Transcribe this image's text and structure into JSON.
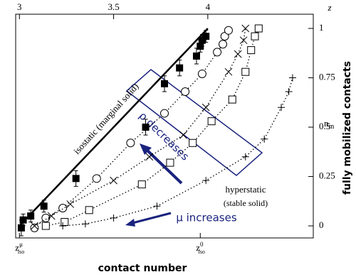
{
  "chart_data": {
    "type": "scatter",
    "xlabel_top": "z",
    "xlabel": "contact number",
    "ylabel": "fully mobilized contacts",
    "ylabel_inner": {
      "text": "n",
      "sub": "m"
    },
    "xlim": [
      2.98,
      4.56
    ],
    "xticks": [
      3,
      3.5,
      4
    ],
    "xticks_bottom": [
      {
        "value": 3,
        "label": "z",
        "sup": "μ",
        "sub": "iso"
      },
      {
        "value": 3.96,
        "label": "z",
        "sup": "0",
        "sub": "iso"
      }
    ],
    "ylim": [
      -0.061,
      1.072
    ],
    "yticks": [
      0,
      0.25,
      0.5,
      0.75,
      1
    ],
    "annotations": [
      "isostatic (marginal solid)",
      "hyperstatic",
      "(stable solid)",
      "ρ decreases",
      "μ increases"
    ],
    "series": [
      {
        "marker": "line",
        "color": "#000000",
        "x": [
          3,
          4
        ],
        "values": [
          0,
          1
        ]
      },
      {
        "marker": "filled-square",
        "color": "#000000",
        "x": [
          3.01,
          3.02,
          3.06,
          3.13,
          3.3,
          3.67,
          3.77,
          3.85,
          3.94,
          3.96,
          3.97,
          3.99
        ],
        "values": [
          -0.01,
          0.03,
          0.05,
          0.1,
          0.24,
          0.5,
          0.72,
          0.8,
          0.86,
          0.91,
          0.94,
          0.96
        ],
        "errors": [
          0.04,
          0.03,
          0.03,
          0.03,
          0.04,
          0.04,
          0.04,
          0.04,
          0.04,
          0.03,
          0.03,
          0.03
        ]
      },
      {
        "marker": "circle",
        "color": "#000000",
        "line": "dotted",
        "x": [
          3.08,
          3.14,
          3.23,
          3.41,
          3.59,
          3.77,
          3.88,
          3.97,
          4.05,
          4.08,
          4.09,
          4.11
        ],
        "values": [
          -0.01,
          0.04,
          0.09,
          0.24,
          0.42,
          0.57,
          0.68,
          0.77,
          0.88,
          0.92,
          0.96,
          0.99
        ]
      },
      {
        "marker": "x",
        "color": "#000000",
        "line": "dotted",
        "x": [
          3.08,
          3.17,
          3.27,
          3.5,
          3.69,
          3.87,
          3.99,
          4.11,
          4.16,
          4.19,
          4.2
        ],
        "values": [
          0,
          0.05,
          0.11,
          0.23,
          0.35,
          0.46,
          0.6,
          0.78,
          0.87,
          0.94,
          1.0
        ]
      },
      {
        "marker": "square",
        "color": "#000000",
        "line": "dotted",
        "x": [
          3.14,
          3.24,
          3.37,
          3.65,
          3.8,
          3.92,
          4.02,
          4.13,
          4.2,
          4.23,
          4.25,
          4.27
        ],
        "values": [
          0,
          0.02,
          0.08,
          0.21,
          0.32,
          0.42,
          0.53,
          0.64,
          0.78,
          0.89,
          0.96,
          1.0
        ]
      },
      {
        "marker": "plus",
        "color": "#000000",
        "line": "dotted",
        "x": [
          3.23,
          3.35,
          3.5,
          3.73,
          3.99,
          4.2,
          4.3,
          4.39,
          4.43,
          4.45
        ],
        "values": [
          0,
          0.01,
          0.04,
          0.1,
          0.23,
          0.35,
          0.44,
          0.6,
          0.68,
          0.75
        ]
      }
    ]
  }
}
